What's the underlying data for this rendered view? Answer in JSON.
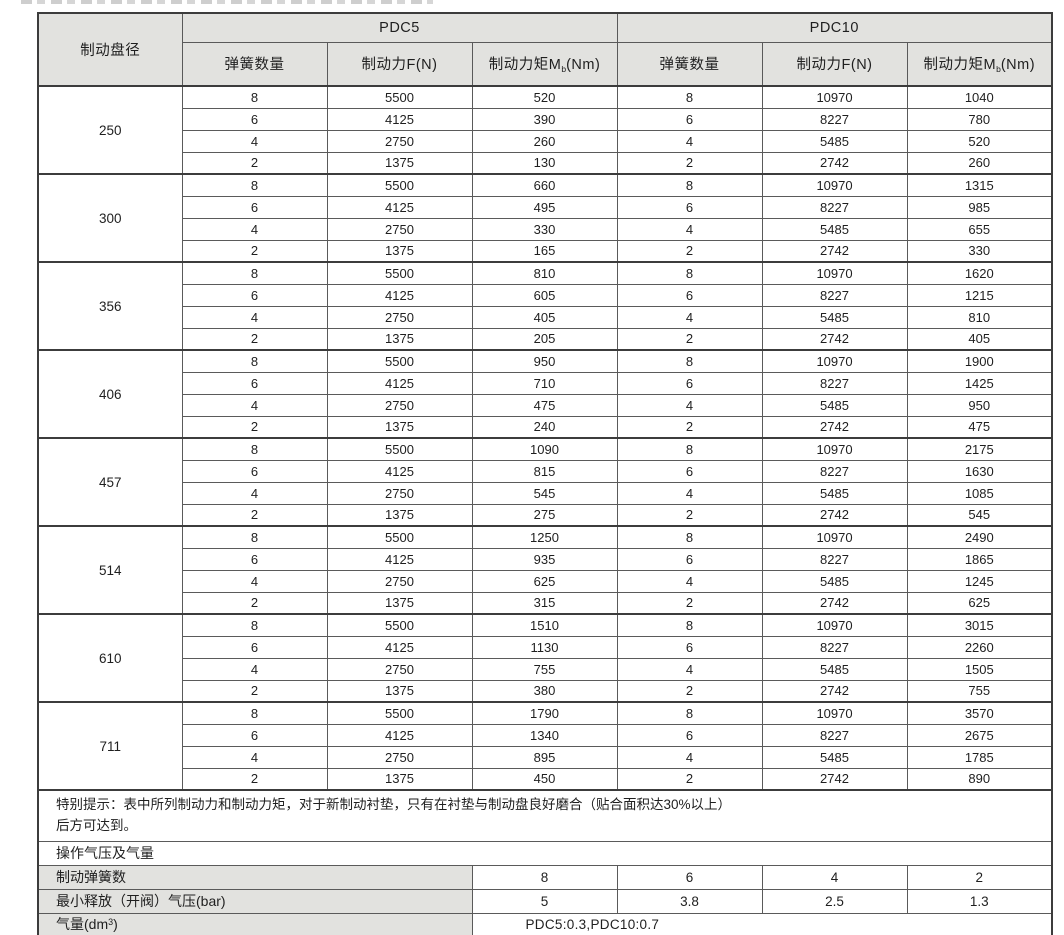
{
  "table": {
    "header": {
      "disc_diameter": "制动盘径",
      "pdc5": "PDC5",
      "pdc10": "PDC10",
      "springs": "弹簧数量",
      "force": "制动力F(N)",
      "torque_prefix": "制动力矩M",
      "torque_sub": "b",
      "torque_suffix": "(Nm)"
    },
    "groups": [
      {
        "diameter": "250",
        "rows": [
          [
            "8",
            "5500",
            "520",
            "8",
            "10970",
            "1040"
          ],
          [
            "6",
            "4125",
            "390",
            "6",
            "8227",
            "780"
          ],
          [
            "4",
            "2750",
            "260",
            "4",
            "5485",
            "520"
          ],
          [
            "2",
            "1375",
            "130",
            "2",
            "2742",
            "260"
          ]
        ]
      },
      {
        "diameter": "300",
        "rows": [
          [
            "8",
            "5500",
            "660",
            "8",
            "10970",
            "1315"
          ],
          [
            "6",
            "4125",
            "495",
            "6",
            "8227",
            "985"
          ],
          [
            "4",
            "2750",
            "330",
            "4",
            "5485",
            "655"
          ],
          [
            "2",
            "1375",
            "165",
            "2",
            "2742",
            "330"
          ]
        ]
      },
      {
        "diameter": "356",
        "rows": [
          [
            "8",
            "5500",
            "810",
            "8",
            "10970",
            "1620"
          ],
          [
            "6",
            "4125",
            "605",
            "6",
            "8227",
            "1215"
          ],
          [
            "4",
            "2750",
            "405",
            "4",
            "5485",
            "810"
          ],
          [
            "2",
            "1375",
            "205",
            "2",
            "2742",
            "405"
          ]
        ]
      },
      {
        "diameter": "406",
        "rows": [
          [
            "8",
            "5500",
            "950",
            "8",
            "10970",
            "1900"
          ],
          [
            "6",
            "4125",
            "710",
            "6",
            "8227",
            "1425"
          ],
          [
            "4",
            "2750",
            "475",
            "4",
            "5485",
            "950"
          ],
          [
            "2",
            "1375",
            "240",
            "2",
            "2742",
            "475"
          ]
        ]
      },
      {
        "diameter": "457",
        "rows": [
          [
            "8",
            "5500",
            "1090",
            "8",
            "10970",
            "2175"
          ],
          [
            "6",
            "4125",
            "815",
            "6",
            "8227",
            "1630"
          ],
          [
            "4",
            "2750",
            "545",
            "4",
            "5485",
            "1085"
          ],
          [
            "2",
            "1375",
            "275",
            "2",
            "2742",
            "545"
          ]
        ]
      },
      {
        "diameter": "514",
        "rows": [
          [
            "8",
            "5500",
            "1250",
            "8",
            "10970",
            "2490"
          ],
          [
            "6",
            "4125",
            "935",
            "6",
            "8227",
            "1865"
          ],
          [
            "4",
            "2750",
            "625",
            "4",
            "5485",
            "1245"
          ],
          [
            "2",
            "1375",
            "315",
            "2",
            "2742",
            "625"
          ]
        ]
      },
      {
        "diameter": "610",
        "rows": [
          [
            "8",
            "5500",
            "1510",
            "8",
            "10970",
            "3015"
          ],
          [
            "6",
            "4125",
            "1130",
            "6",
            "8227",
            "2260"
          ],
          [
            "4",
            "2750",
            "755",
            "4",
            "5485",
            "1505"
          ],
          [
            "2",
            "1375",
            "380",
            "2",
            "2742",
            "755"
          ]
        ]
      },
      {
        "diameter": "711",
        "rows": [
          [
            "8",
            "5500",
            "1790",
            "8",
            "10970",
            "3570"
          ],
          [
            "6",
            "4125",
            "1340",
            "6",
            "8227",
            "2675"
          ],
          [
            "4",
            "2750",
            "895",
            "4",
            "5485",
            "1785"
          ],
          [
            "2",
            "1375",
            "450",
            "2",
            "2742",
            "890"
          ]
        ]
      }
    ],
    "notes": {
      "special_note_line1": "特别提示：表中所列制动力和制动力矩，对于新制动衬垫，只有在衬垫与制动盘良好磨合（贴合面积达30%以上）",
      "special_note_line2": "后方可达到。",
      "operation_title": "操作气压及气量",
      "spring_count_label": "制动弹簧数",
      "spring_counts": [
        "8",
        "6",
        "4",
        "2"
      ],
      "release_pressure_label": "最小释放（开阀）气压(bar)",
      "release_pressures": [
        "5",
        "3.8",
        "2.5",
        "1.3"
      ],
      "air_volume_label_prefix": "气量(dm",
      "air_volume_sup": "3",
      "air_volume_suffix": ")",
      "air_volume_value": "PDC5:0.3,PDC10:0.7"
    }
  }
}
